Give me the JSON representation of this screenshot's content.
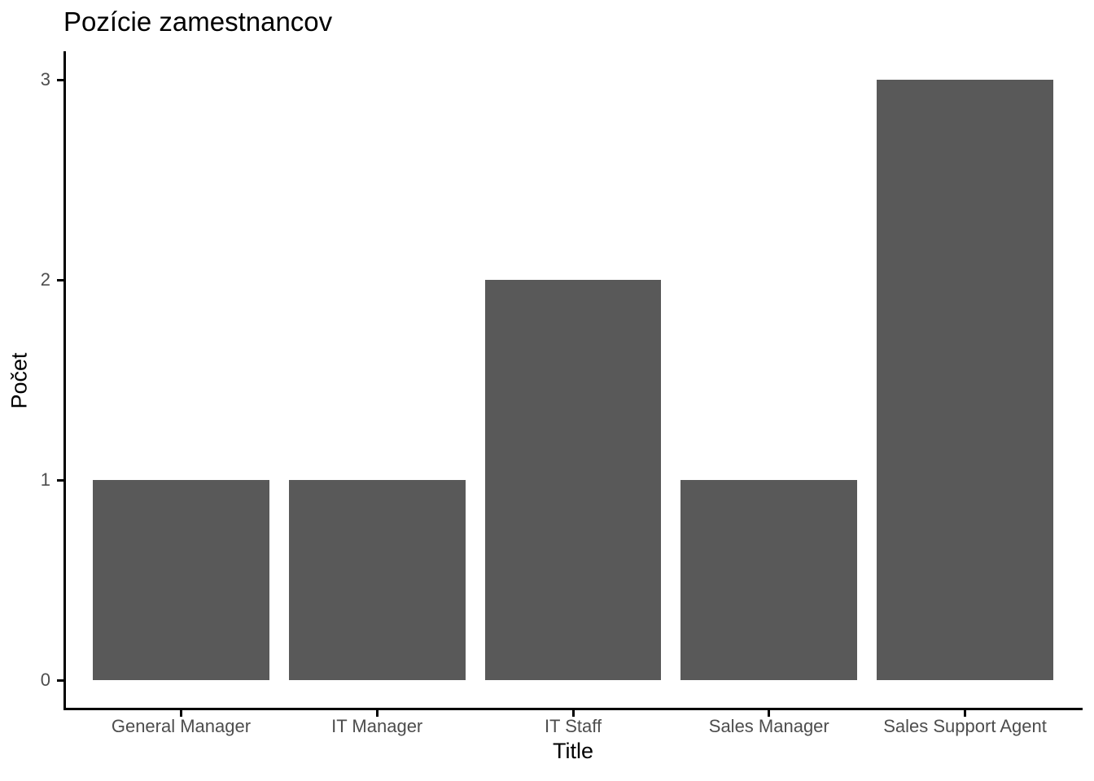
{
  "chart_data": {
    "type": "bar",
    "title": "Pozície zamestnancov",
    "xlabel": "Title",
    "ylabel": "Počet",
    "categories": [
      "General Manager",
      "IT Manager",
      "IT Staff",
      "Sales Manager",
      "Sales Support Agent"
    ],
    "values": [
      1,
      1,
      2,
      1,
      3
    ],
    "ylim": [
      0,
      3
    ],
    "yticks": [
      0,
      1,
      2,
      3
    ],
    "bar_color": "#595959",
    "axis_line_color": "#000000",
    "tick_label_color": "#4d4d4d",
    "title_color": "#000000",
    "grid": false,
    "legend": false,
    "bar_width_fraction": 0.9
  }
}
